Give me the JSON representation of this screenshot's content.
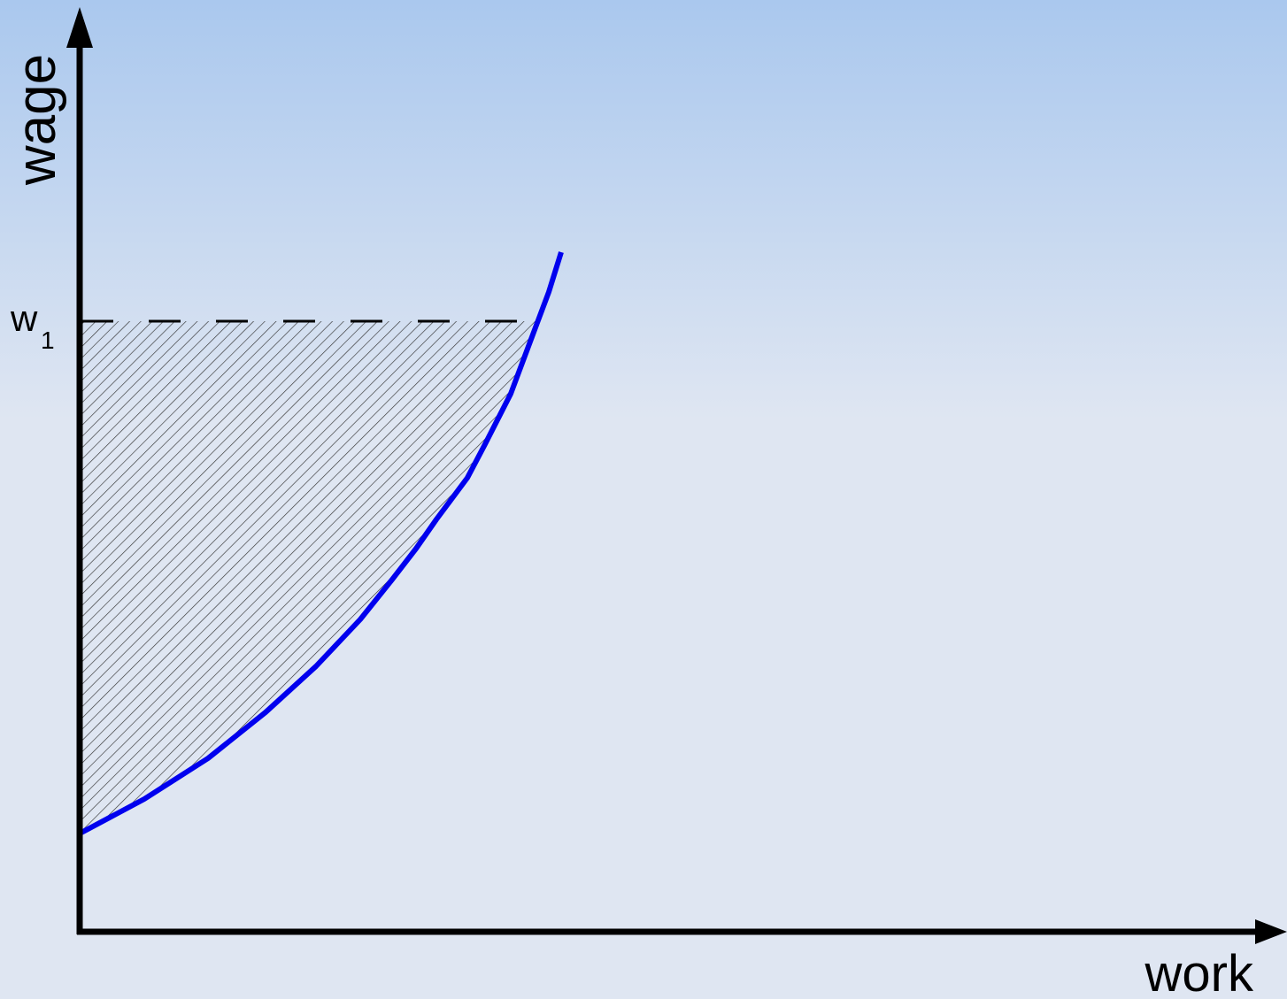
{
  "axes": {
    "y_label": "wage",
    "x_label": "work"
  },
  "wage_level": {
    "label": "w",
    "subscript": "1"
  }
}
